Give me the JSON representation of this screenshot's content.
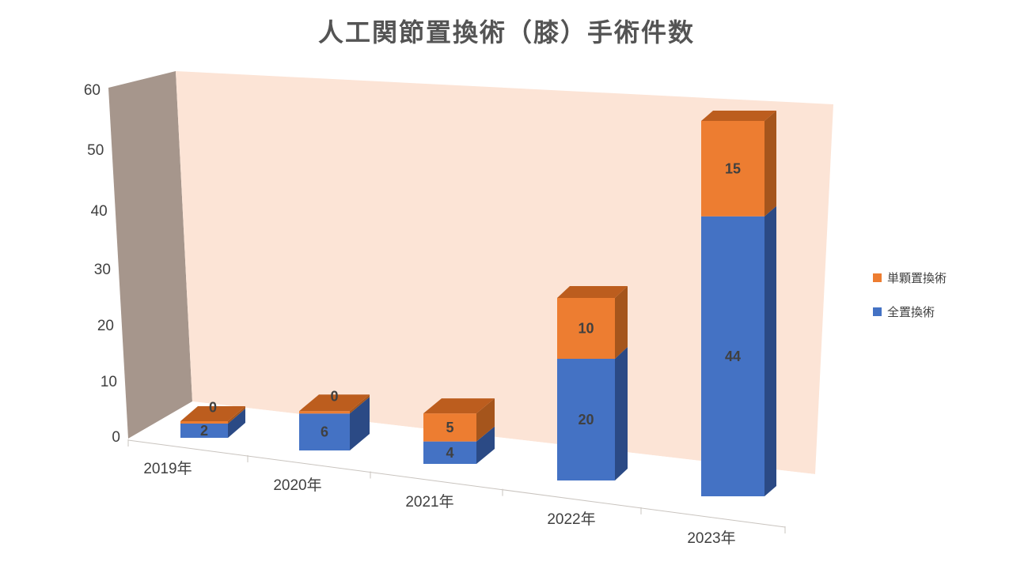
{
  "title": "人工関節置換術（膝）手術件数",
  "legend": {
    "items": [
      {
        "label": "単顆置換術",
        "color": "#ED7D31"
      },
      {
        "label": "全置換術",
        "color": "#4472C4"
      }
    ]
  },
  "chart_data": {
    "type": "bar",
    "subtype": "3d-stacked-column",
    "title": "人工関節置換術（膝）手術件数",
    "categories": [
      "2019年",
      "2020年",
      "2021年",
      "2022年",
      "2023年"
    ],
    "series": [
      {
        "name": "全置換術",
        "color": "#4472C4",
        "values": [
          2,
          6,
          4,
          20,
          44
        ]
      },
      {
        "name": "単顆置換術",
        "color": "#ED7D31",
        "values": [
          0,
          0,
          5,
          10,
          15
        ]
      }
    ],
    "y_axis": {
      "min": 0,
      "max": 60,
      "tick_interval": 10,
      "tick_labels": [
        "0",
        "10",
        "20",
        "30",
        "40",
        "50",
        "60"
      ]
    },
    "data_labels_visible": true,
    "legend_position": "right",
    "grid": false
  },
  "colors": {
    "back_wall": "#FCE4D6",
    "side_wall": "#A6968C",
    "floor": "#FFFFFF",
    "blue_front": "#4472C4",
    "blue_side": "#2B4A85",
    "orange_front": "#ED7D31",
    "orange_side": "#A5551C",
    "orange_top": "#BC5D1E",
    "axis_line": "#C9C4BF",
    "label_text": "#404040",
    "title_text": "#545454"
  }
}
